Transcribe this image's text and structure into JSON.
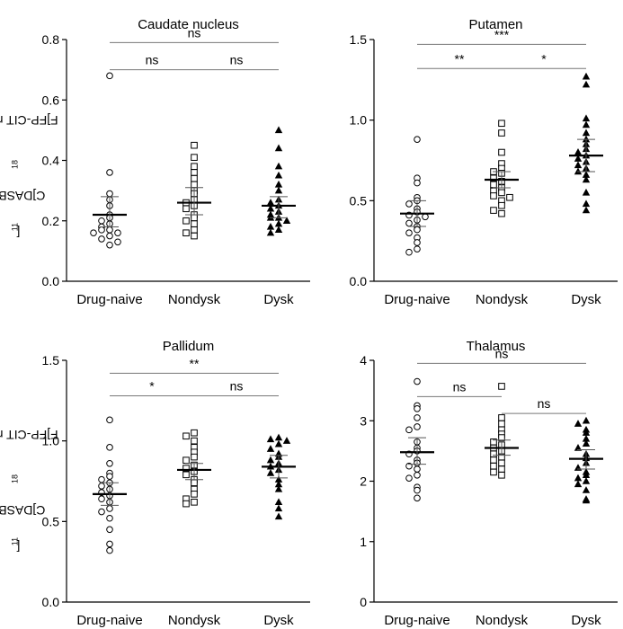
{
  "figure": {
    "ylabel_parts": [
      "[",
      "11",
      "C]DASB/[",
      "18",
      "F]FP-CIT ratio"
    ]
  },
  "chart_data": [
    {
      "type": "scatter",
      "title": "Caudate nucleus",
      "categories": [
        "Drug-naive",
        "Nondysk",
        "Dysk"
      ],
      "ylim": [
        0,
        0.8
      ],
      "yticks": [
        "0.0",
        "0.2",
        "0.4",
        "0.6",
        "0.8"
      ],
      "series": [
        {
          "category": "Drug-naive",
          "marker": "open-circle",
          "values": [
            0.68,
            0.36,
            0.29,
            0.27,
            0.25,
            0.22,
            0.21,
            0.2,
            0.19,
            0.18,
            0.17,
            0.17,
            0.16,
            0.16,
            0.15,
            0.14,
            0.13,
            0.12
          ],
          "mean": 0.22,
          "sem": [
            0.18,
            0.28
          ]
        },
        {
          "category": "Nondysk",
          "marker": "open-square",
          "values": [
            0.45,
            0.41,
            0.38,
            0.36,
            0.34,
            0.32,
            0.3,
            0.29,
            0.27,
            0.26,
            0.25,
            0.24,
            0.22,
            0.21,
            0.2,
            0.19,
            0.17,
            0.16,
            0.15
          ],
          "mean": 0.26,
          "sem": [
            0.22,
            0.31
          ]
        },
        {
          "category": "Dysk",
          "marker": "filled-triangle",
          "values": [
            0.5,
            0.44,
            0.38,
            0.35,
            0.32,
            0.3,
            0.27,
            0.26,
            0.25,
            0.24,
            0.23,
            0.22,
            0.21,
            0.21,
            0.2,
            0.19,
            0.18,
            0.17,
            0.16
          ],
          "mean": 0.25,
          "sem": [
            0.21,
            0.28
          ]
        }
      ],
      "annotations": [
        {
          "text": "ns",
          "from": 0,
          "to": 2,
          "y": 0.79
        },
        {
          "text": "ns",
          "from": 0,
          "to": 1,
          "y": 0.7
        },
        {
          "text": "ns",
          "from": 1,
          "to": 2,
          "y": 0.7
        }
      ]
    },
    {
      "type": "scatter",
      "title": "Putamen",
      "categories": [
        "Drug-naive",
        "Nondysk",
        "Dysk"
      ],
      "ylim": [
        0,
        1.5
      ],
      "yticks": [
        "0.0",
        "0.5",
        "1.0",
        "1.5"
      ],
      "series": [
        {
          "category": "Drug-naive",
          "marker": "open-circle",
          "values": [
            0.88,
            0.64,
            0.61,
            0.52,
            0.5,
            0.48,
            0.45,
            0.43,
            0.41,
            0.4,
            0.38,
            0.36,
            0.34,
            0.32,
            0.3,
            0.27,
            0.24,
            0.2,
            0.18
          ],
          "mean": 0.42,
          "sem": [
            0.34,
            0.5
          ]
        },
        {
          "category": "Nondysk",
          "marker": "open-square",
          "values": [
            0.98,
            0.92,
            0.8,
            0.73,
            0.7,
            0.68,
            0.67,
            0.64,
            0.62,
            0.6,
            0.58,
            0.56,
            0.55,
            0.53,
            0.52,
            0.5,
            0.47,
            0.44,
            0.42
          ],
          "mean": 0.63,
          "sem": [
            0.58,
            0.68
          ]
        },
        {
          "category": "Dysk",
          "marker": "filled-triangle",
          "values": [
            1.27,
            1.22,
            1.01,
            0.97,
            0.92,
            0.88,
            0.85,
            0.82,
            0.8,
            0.78,
            0.76,
            0.74,
            0.72,
            0.7,
            0.68,
            0.66,
            0.63,
            0.55,
            0.48,
            0.44
          ],
          "mean": 0.78,
          "sem": [
            0.68,
            0.88
          ]
        }
      ],
      "annotations": [
        {
          "text": "***",
          "from": 0,
          "to": 2,
          "y": 1.47
        },
        {
          "text": "**",
          "from": 0,
          "to": 1,
          "y": 1.32
        },
        {
          "text": "*",
          "from": 1,
          "to": 2,
          "y": 1.32
        }
      ]
    },
    {
      "type": "scatter",
      "title": "Pallidum",
      "categories": [
        "Drug-naive",
        "Nondysk",
        "Dysk"
      ],
      "ylim": [
        0,
        1.5
      ],
      "yticks": [
        "0.0",
        "0.5",
        "1.0",
        "1.5"
      ],
      "series": [
        {
          "category": "Drug-naive",
          "marker": "open-circle",
          "values": [
            1.13,
            0.96,
            0.86,
            0.8,
            0.78,
            0.76,
            0.74,
            0.72,
            0.7,
            0.68,
            0.66,
            0.64,
            0.62,
            0.58,
            0.56,
            0.52,
            0.45,
            0.36,
            0.32
          ],
          "mean": 0.67,
          "sem": [
            0.6,
            0.74
          ]
        },
        {
          "category": "Nondysk",
          "marker": "open-square",
          "values": [
            1.05,
            1.03,
            1.0,
            0.96,
            0.93,
            0.9,
            0.88,
            0.85,
            0.83,
            0.81,
            0.79,
            0.76,
            0.74,
            0.7,
            0.67,
            0.64,
            0.62,
            0.61
          ],
          "mean": 0.82,
          "sem": [
            0.76,
            0.86
          ]
        },
        {
          "category": "Dysk",
          "marker": "filled-triangle",
          "values": [
            1.02,
            1.01,
            1.0,
            0.98,
            0.95,
            0.92,
            0.9,
            0.88,
            0.86,
            0.84,
            0.82,
            0.8,
            0.76,
            0.73,
            0.7,
            0.62,
            0.58,
            0.53
          ],
          "mean": 0.84,
          "sem": [
            0.77,
            0.91
          ]
        }
      ],
      "annotations": [
        {
          "text": "**",
          "from": 0,
          "to": 2,
          "y": 1.42
        },
        {
          "text": "*",
          "from": 0,
          "to": 1,
          "y": 1.28
        },
        {
          "text": "ns",
          "from": 1,
          "to": 2,
          "y": 1.28
        }
      ]
    },
    {
      "type": "scatter",
      "title": "Thalamus",
      "categories": [
        "Drug-naive",
        "Nondysk",
        "Dysk"
      ],
      "ylim": [
        0,
        4
      ],
      "yticks": [
        "0",
        "1",
        "2",
        "3",
        "4"
      ],
      "series": [
        {
          "category": "Drug-naive",
          "marker": "open-circle",
          "values": [
            3.65,
            3.25,
            3.2,
            3.05,
            2.9,
            2.85,
            2.65,
            2.55,
            2.5,
            2.45,
            2.35,
            2.3,
            2.25,
            2.2,
            2.1,
            2.05,
            1.9,
            1.85,
            1.72
          ],
          "mean": 2.48,
          "sem": [
            2.28,
            2.72
          ]
        },
        {
          "category": "Nondysk",
          "marker": "open-square",
          "values": [
            3.57,
            3.05,
            2.95,
            2.85,
            2.78,
            2.72,
            2.65,
            2.6,
            2.55,
            2.5,
            2.45,
            2.4,
            2.35,
            2.3,
            2.25,
            2.2,
            2.15,
            2.1
          ],
          "mean": 2.55,
          "sem": [
            2.43,
            2.68
          ]
        },
        {
          "category": "Dysk",
          "marker": "filled-triangle",
          "values": [
            3.0,
            2.95,
            2.85,
            2.8,
            2.7,
            2.62,
            2.55,
            2.45,
            2.38,
            2.3,
            2.22,
            2.15,
            2.1,
            2.05,
            2.0,
            1.95,
            1.85,
            1.7,
            1.68
          ],
          "mean": 2.37,
          "sem": [
            2.2,
            2.52
          ]
        }
      ],
      "annotations": [
        {
          "text": "ns",
          "from": 0,
          "to": 2,
          "y": 3.95
        },
        {
          "text": "ns",
          "from": 0,
          "to": 1,
          "y": 3.4
        },
        {
          "text": "ns",
          "from": 1,
          "to": 2,
          "y": 3.12
        }
      ]
    }
  ]
}
